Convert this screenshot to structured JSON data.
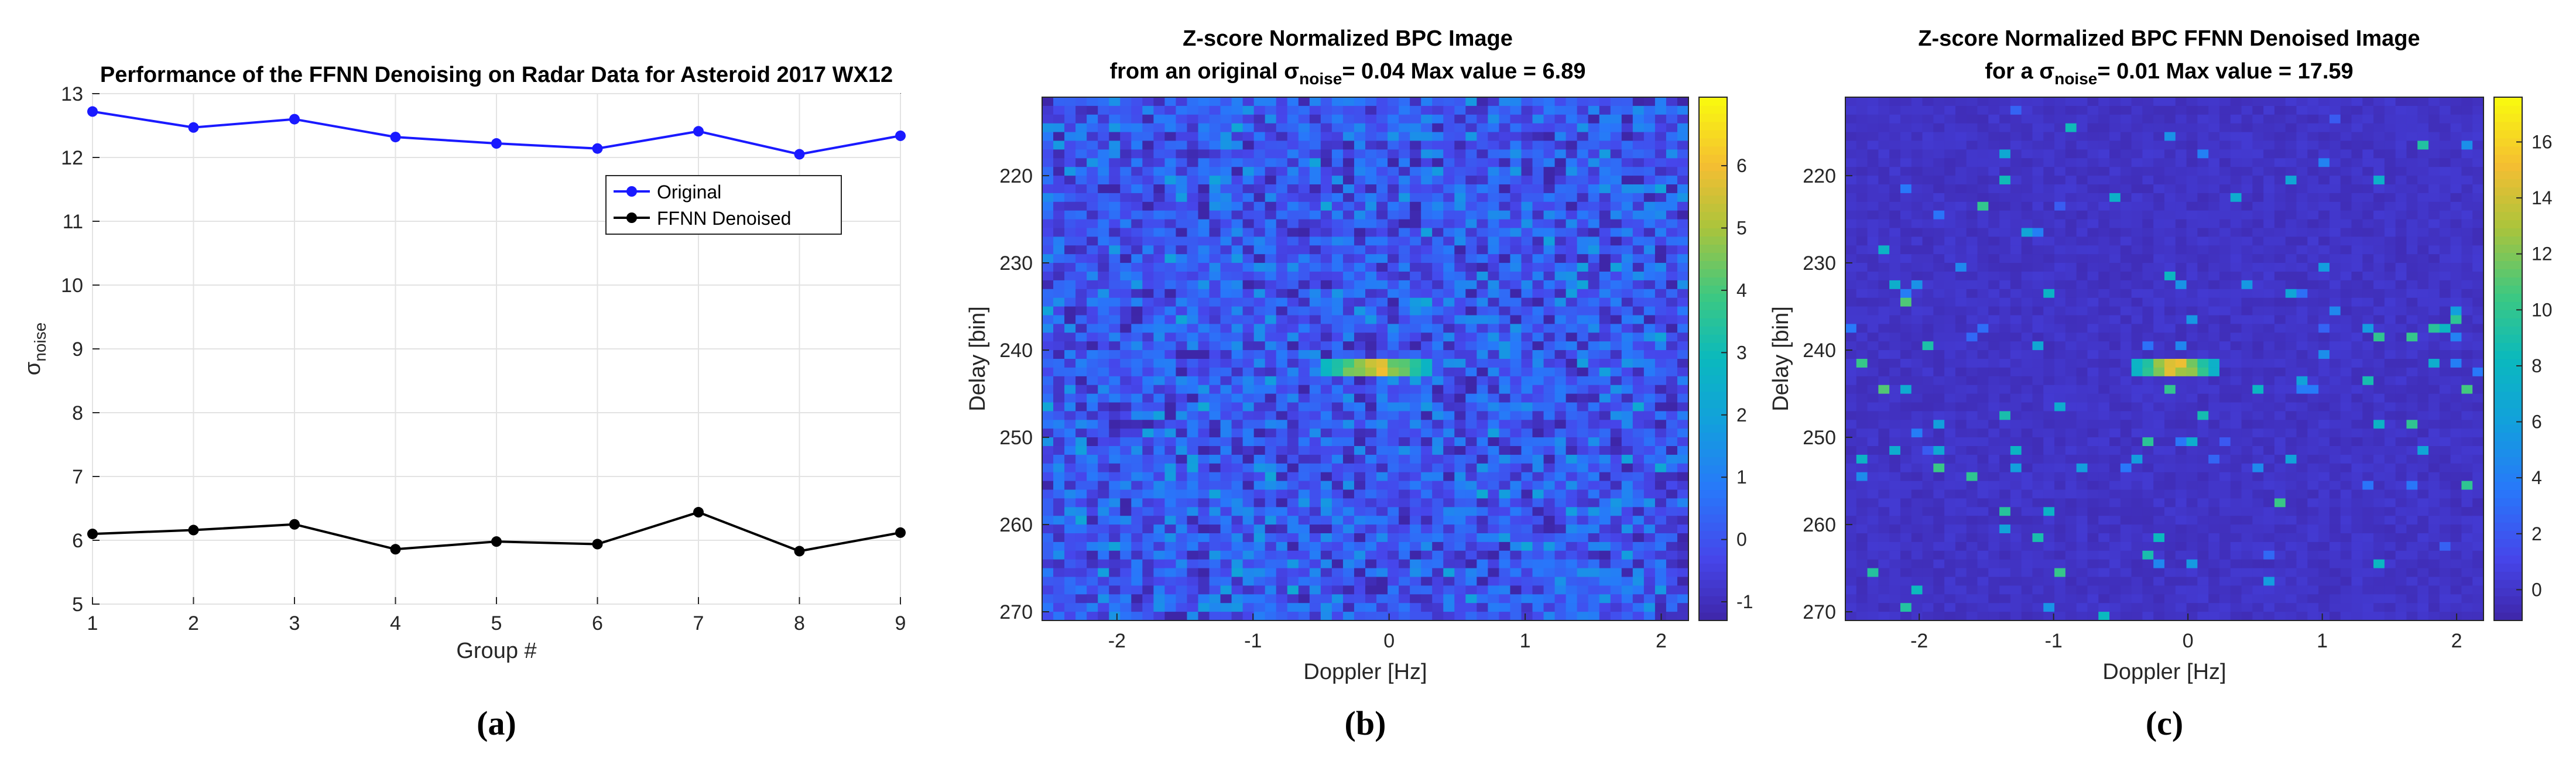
{
  "chart_data": [
    {
      "type": "line",
      "title": "Performance of the FFNN Denoising on Radar Data for Asteroid 2017 WX12",
      "xlabel": "Group #",
      "ylabel": "σ_noise",
      "x": [
        1,
        2,
        3,
        4,
        5,
        6,
        7,
        8,
        9
      ],
      "xlim": [
        1,
        9
      ],
      "ylim": [
        5,
        13
      ],
      "xticks": [
        1,
        2,
        3,
        4,
        5,
        6,
        7,
        8,
        9
      ],
      "yticks": [
        5,
        6,
        7,
        8,
        9,
        10,
        11,
        12,
        13
      ],
      "grid": true,
      "legend_position": "upper-right",
      "series": [
        {
          "name": "Original",
          "color": "#1a1aff",
          "values": [
            12.72,
            12.47,
            12.6,
            12.32,
            12.22,
            12.14,
            12.41,
            12.05,
            12.34
          ]
        },
        {
          "name": "FFNN Denoised",
          "color": "#000000",
          "values": [
            6.1,
            6.16,
            6.25,
            5.86,
            5.98,
            5.94,
            6.44,
            5.83,
            6.12
          ]
        }
      ],
      "caption": "(a)"
    },
    {
      "type": "heatmap",
      "title_line1": "Z-score Normalized BPC Image",
      "title_line2_prefix": "from an original σ",
      "title_line2_sub": "noise",
      "title_line2_suffix": "= 0.04 Max value = 6.89",
      "xlabel": "Doppler [Hz]",
      "ylabel": "Delay [bin]",
      "xlim": [
        -2.55,
        2.2
      ],
      "ylim": [
        211,
        271
      ],
      "xticks": [
        -2,
        -1,
        0,
        1,
        2
      ],
      "yticks": [
        220,
        230,
        240,
        250,
        260,
        270
      ],
      "colorbar_range": [
        -1.3,
        7.1
      ],
      "colorbar_ticks": [
        -1,
        0,
        1,
        2,
        3,
        4,
        5,
        6
      ],
      "colormap": "parula",
      "max_value": 6.89,
      "signal": {
        "doppler_center": -0.1,
        "delay_center": 242,
        "doppler_halfwidth": 0.4
      },
      "caption": "(b)"
    },
    {
      "type": "heatmap",
      "title_line1": "Z-score Normalized BPC FFNN Denoised Image",
      "title_line2_prefix": "for a σ",
      "title_line2_sub": "noise",
      "title_line2_suffix": "= 0.01 Max value = 17.59",
      "xlabel": "Doppler [Hz]",
      "ylabel": "Delay [bin]",
      "xlim": [
        -2.55,
        2.2
      ],
      "ylim": [
        211,
        271
      ],
      "xticks": [
        -2,
        -1,
        0,
        1,
        2
      ],
      "yticks": [
        220,
        230,
        240,
        250,
        260,
        270
      ],
      "colorbar_range": [
        -1.1,
        17.6
      ],
      "colorbar_ticks": [
        0,
        2,
        4,
        6,
        8,
        10,
        12,
        14,
        16
      ],
      "colormap": "parula",
      "max_value": 17.59,
      "signal": {
        "doppler_center": -0.1,
        "delay_center": 242,
        "doppler_halfwidth": 0.3
      },
      "caption": "(c)"
    }
  ]
}
